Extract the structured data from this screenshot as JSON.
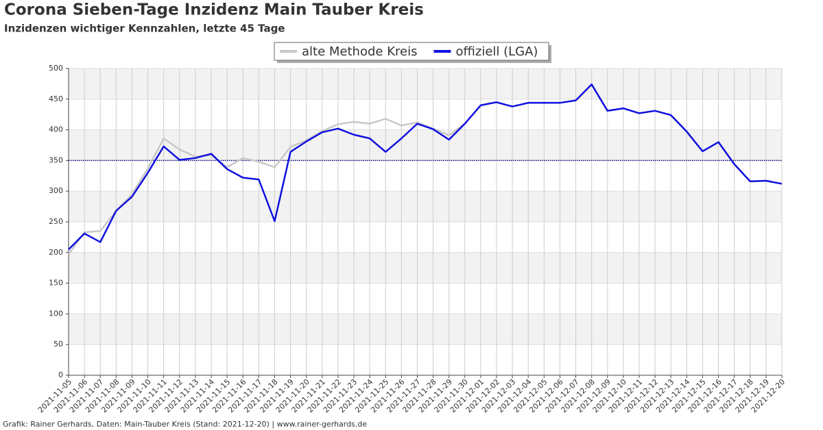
{
  "chart_data": {
    "type": "line",
    "title": "Corona Sieben-Tage Inzidenz Main Tauber Kreis",
    "subtitle": "Inzidenzen wichtiger Kennzahlen, letzte 45 Tage",
    "footer": "Grafik: Rainer Gerhards, Daten: Main-Tauber Kreis (Stand: 2021-12-20) | www.rainer-gerhards.de",
    "categories": [
      "2021-11-05",
      "2021-11-06",
      "2021-11-07",
      "2021-11-08",
      "2021-11-09",
      "2021-11-10",
      "2021-11-11",
      "2021-11-12",
      "2021-11-13",
      "2021-11-14",
      "2021-11-15",
      "2021-11-16",
      "2021-11-17",
      "2021-11-18",
      "2021-11-19",
      "2021-11-20",
      "2021-11-21",
      "2021-11-22",
      "2021-11-23",
      "2021-11-24",
      "2021-11-25",
      "2021-11-26",
      "2021-11-27",
      "2021-11-28",
      "2021-11-29",
      "2021-11-30",
      "2021-12-01",
      "2021-12-02",
      "2021-12-03",
      "2021-12-04",
      "2021-12-05",
      "2021-12-06",
      "2021-12-07",
      "2021-12-08",
      "2021-12-09",
      "2021-12-10",
      "2021-12-11",
      "2021-12-12",
      "2021-12-13",
      "2021-12-14",
      "2021-12-15",
      "2021-12-16",
      "2021-12-17",
      "2021-12-18",
      "2021-12-19",
      "2021-12-20"
    ],
    "series": [
      {
        "name": "alte Methode Kreis",
        "color": "#c8c8c8",
        "values": [
          197,
          233,
          235,
          268,
          295,
          337,
          386,
          368,
          356,
          359,
          339,
          354,
          348,
          339,
          372,
          383,
          398,
          409,
          413,
          410,
          418,
          407,
          412,
          402,
          391,
          410,
          440,
          445,
          438,
          444,
          444,
          444,
          448,
          474,
          431,
          435,
          427,
          431,
          424,
          397,
          365,
          380,
          344,
          316,
          317,
          312
        ]
      },
      {
        "name": "offiziell (LGA)",
        "color": "#1010e0",
        "values": [
          205,
          231,
          217,
          268,
          291,
          330,
          373,
          351,
          354,
          361,
          336,
          322,
          319,
          251,
          364,
          381,
          396,
          402,
          392,
          386,
          364,
          386,
          410,
          401,
          384,
          410,
          440,
          445,
          438,
          444,
          444,
          444,
          448,
          474,
          431,
          435,
          427,
          431,
          424,
          397,
          365,
          380,
          344,
          316,
          317,
          312
        ]
      }
    ],
    "reference_line": {
      "value": 350,
      "color": "#000080"
    },
    "ylim": [
      0,
      500
    ],
    "yticks": [
      0,
      50,
      100,
      150,
      200,
      250,
      300,
      350,
      400,
      450,
      500
    ],
    "grid": true,
    "legend": "top"
  }
}
